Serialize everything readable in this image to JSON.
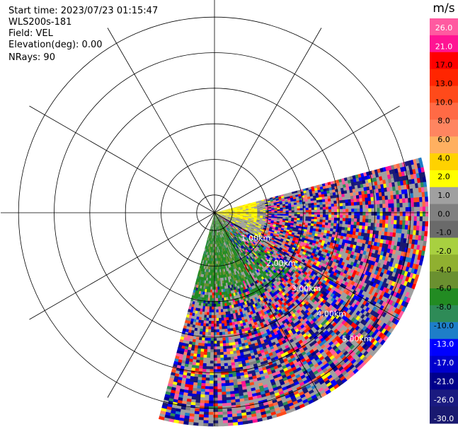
{
  "header": {
    "start_time": "Start time: 2023/07/23 01:15:47",
    "instrument": "WLS200s-181",
    "field": "Field: VEL",
    "elevation": "Elevation(deg): 0.00",
    "nrays": "NRays: 90"
  },
  "chart_data": {
    "type": "heatmap",
    "projection": "polar PPI",
    "field": "VEL",
    "unit": "m/s",
    "sector_azimuth_deg": [
      75,
      195
    ],
    "max_range_km": 6.0,
    "range_rings_km": [
      0.5,
      1.5,
      2.5,
      3.5,
      4.5,
      5.5
    ],
    "range_labels": [
      {
        "km": 1,
        "text": "1.00km"
      },
      {
        "km": 2,
        "text": "2.00km"
      },
      {
        "km": 3,
        "text": "3.00km"
      },
      {
        "km": 4,
        "text": "4.00km"
      },
      {
        "km": 5,
        "text": "5.00km"
      }
    ],
    "spoke_interval_deg": 30,
    "colorbar": {
      "title": "m/s",
      "ticks": [
        "26.0",
        "21.0",
        "17.0",
        "13.0",
        "10.0",
        "8.0",
        "6.0",
        "4.0",
        "2.0",
        "1.0",
        "0.0",
        "-1.0",
        "-2.0",
        "-4.0",
        "-6.0",
        "-8.0",
        "-10.0",
        "-13.0",
        "-17.0",
        "-21.0",
        "-26.0",
        "-30.0"
      ],
      "colors": [
        "#ff5aa0",
        "#ff1493",
        "#ff0000",
        "#ff2500",
        "#ff4a1a",
        "#ff6a45",
        "#ff8560",
        "#ffb060",
        "#ffd200",
        "#ffff00",
        "#a0a0a0",
        "#808080",
        "#6a6a6a",
        "#a8d040",
        "#90b030",
        "#6a9030",
        "#228b22",
        "#2e8b57",
        "#1e7ec8",
        "#0000ff",
        "#0000cd",
        "#00008b",
        "#1a1a80",
        "#191970"
      ]
    }
  }
}
